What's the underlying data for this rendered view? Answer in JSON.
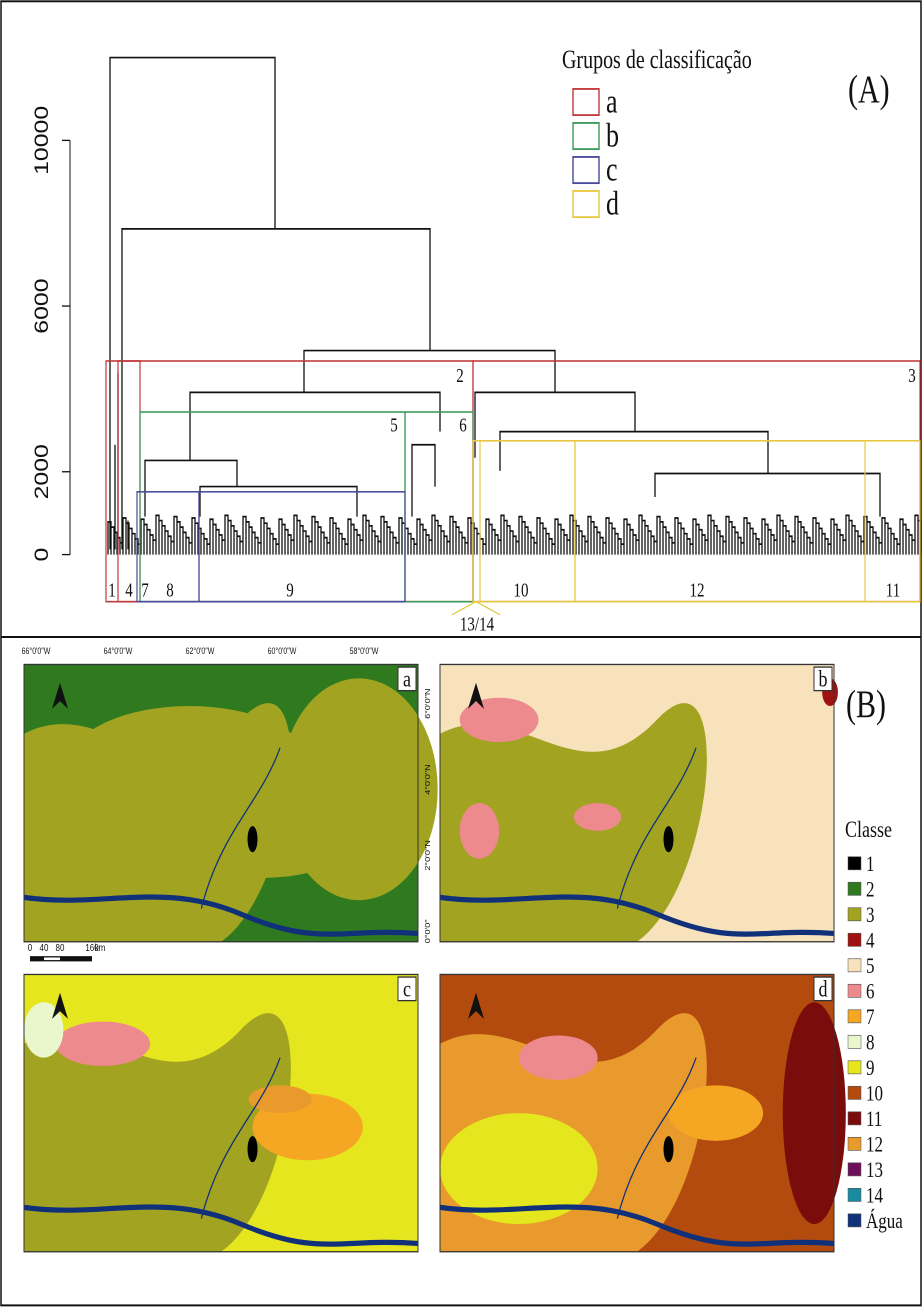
{
  "panel_a": {
    "label": "(A)",
    "ylim": [
      0,
      12000
    ],
    "yticks": [
      0,
      2000,
      6000,
      10000
    ],
    "legend": {
      "title": "Grupos de classificação",
      "items": [
        {
          "name": "a",
          "color": "#c0393b"
        },
        {
          "name": "b",
          "color": "#3a9a5a"
        },
        {
          "name": "c",
          "color": "#4a4a9a"
        },
        {
          "name": "d",
          "color": "#e8c840"
        }
      ]
    },
    "group_labels": [
      "2",
      "3",
      "5",
      "6"
    ],
    "cluster_labels": [
      "1",
      "4",
      "7",
      "8",
      "9",
      "10",
      "12",
      "11",
      "13/14"
    ]
  },
  "panel_b": {
    "label": "(B)",
    "maps": [
      "a",
      "b",
      "c",
      "d"
    ],
    "lon_ticks": [
      "66°0'0\"W",
      "64°0'0\"W",
      "62°0'0\"W",
      "60°0'0\"W",
      "58°0'0\"W"
    ],
    "lat_ticks": [
      "6°0'0\"N",
      "4°0'0\"N",
      "2°0'0\"N",
      "0°0'0\""
    ],
    "scale_labels": [
      "0",
      "40",
      "80",
      "160",
      "km"
    ],
    "legend": {
      "title": "Classe",
      "items": [
        {
          "name": "1",
          "color": "#000000"
        },
        {
          "name": "2",
          "color": "#2f7a1f"
        },
        {
          "name": "3",
          "color": "#a3a322"
        },
        {
          "name": "4",
          "color": "#a01212"
        },
        {
          "name": "5",
          "color": "#f8e2bc"
        },
        {
          "name": "6",
          "color": "#ec8a8e"
        },
        {
          "name": "7",
          "color": "#f5a623"
        },
        {
          "name": "8",
          "color": "#eaf6cc"
        },
        {
          "name": "9",
          "color": "#e6e61e"
        },
        {
          "name": "10",
          "color": "#b34a0e"
        },
        {
          "name": "11",
          "color": "#7a0c0c"
        },
        {
          "name": "12",
          "color": "#e99a2c"
        },
        {
          "name": "13",
          "color": "#6e0f5c"
        },
        {
          "name": "14",
          "color": "#1a8aa2"
        },
        {
          "name": "Água",
          "color": "#10307a"
        }
      ]
    }
  }
}
